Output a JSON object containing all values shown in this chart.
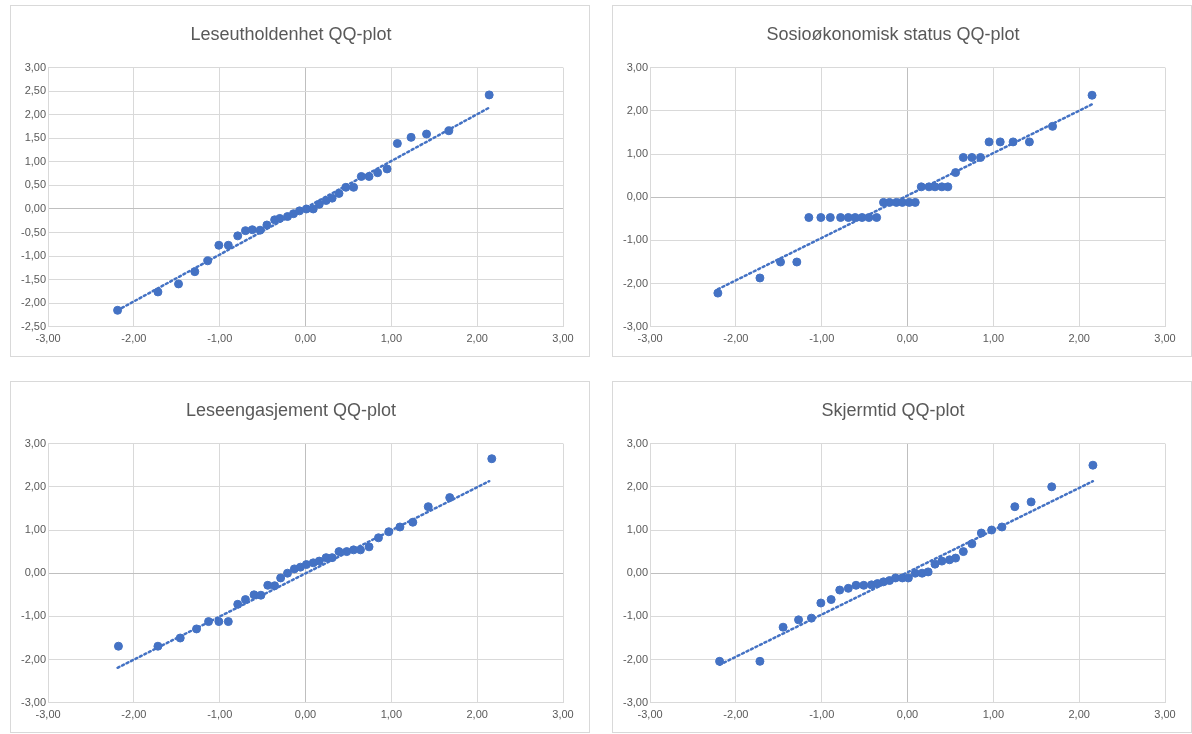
{
  "chart_data": [
    {
      "type": "scatter",
      "title": "Leseutholdenhet QQ-plot",
      "marker": "circle",
      "grid": true,
      "xlim": [
        -3,
        3
      ],
      "xticks": [
        {
          "value": -3,
          "label": "-3,00"
        },
        {
          "value": -2,
          "label": "-2,00"
        },
        {
          "value": -1,
          "label": "-1,00"
        },
        {
          "value": 0,
          "label": "0,00"
        },
        {
          "value": 1,
          "label": "1,00"
        },
        {
          "value": 2,
          "label": "2,00"
        },
        {
          "value": 3,
          "label": "3,00"
        }
      ],
      "ylim": [
        -2.5,
        3
      ],
      "yticks": [
        {
          "value": -2.5,
          "label": "-2,50"
        },
        {
          "value": -2,
          "label": "-2,00"
        },
        {
          "value": -1.5,
          "label": "-1,50"
        },
        {
          "value": -1,
          "label": "-1,00"
        },
        {
          "value": -0.5,
          "label": "-0,50"
        },
        {
          "value": 0,
          "label": "0,00"
        },
        {
          "value": 0.5,
          "label": "0,50"
        },
        {
          "value": 1,
          "label": "1,00"
        },
        {
          "value": 1.5,
          "label": "1,50"
        },
        {
          "value": 2,
          "label": "2,00"
        },
        {
          "value": 2.5,
          "label": "2,50"
        },
        {
          "value": 3,
          "label": "3,00"
        }
      ],
      "series": [
        {
          "type": "scatter",
          "color": "#4472c4",
          "x": [
            -2.19,
            -1.72,
            -1.48,
            -1.29,
            -1.14,
            -1.01,
            -0.9,
            -0.79,
            -0.7,
            -0.62,
            -0.53,
            -0.45,
            -0.36,
            -0.3,
            -0.21,
            -0.14,
            -0.07,
            0.01,
            0.09,
            0.16,
            0.24,
            0.31,
            0.39,
            0.47,
            0.56,
            0.65,
            0.74,
            0.84,
            0.95,
            1.07,
            1.23,
            1.41,
            1.67,
            2.14
          ],
          "values": [
            -2.15,
            -1.76,
            -1.59,
            -1.33,
            -1.1,
            -0.77,
            -0.77,
            -0.57,
            -0.46,
            -0.44,
            -0.45,
            -0.34,
            -0.23,
            -0.2,
            -0.16,
            -0.1,
            -0.04,
            0,
            0,
            0.1,
            0.18,
            0.23,
            0.33,
            0.46,
            0.46,
            0.69,
            0.69,
            0.77,
            0.85,
            1.39,
            1.52,
            1.59,
            1.66,
            2.42
          ]
        },
        {
          "type": "line",
          "color": "#4472c4",
          "line_style": "dotted",
          "marker": "none",
          "x": [
            -2.19,
            2.14
          ],
          "values": [
            -2.15,
            2.15
          ]
        }
      ]
    },
    {
      "type": "scatter",
      "title": "Sosioøkonomisk status QQ-plot",
      "marker": "circle",
      "grid": true,
      "xlim": [
        -3,
        3
      ],
      "xticks": [
        {
          "value": -3,
          "label": "-3,00"
        },
        {
          "value": -2,
          "label": "-2,00"
        },
        {
          "value": -1,
          "label": "-1,00"
        },
        {
          "value": 0,
          "label": "0,00"
        },
        {
          "value": 1,
          "label": "1,00"
        },
        {
          "value": 2,
          "label": "2,00"
        },
        {
          "value": 3,
          "label": "3,00"
        }
      ],
      "ylim": [
        -3,
        3
      ],
      "yticks": [
        {
          "value": -3,
          "label": "-3,00"
        },
        {
          "value": -2,
          "label": "-2,00"
        },
        {
          "value": -1,
          "label": "-1,00"
        },
        {
          "value": 0,
          "label": "0,00"
        },
        {
          "value": 1,
          "label": "1,00"
        },
        {
          "value": 2,
          "label": "2,00"
        },
        {
          "value": 3,
          "label": "3,00"
        }
      ],
      "series": [
        {
          "type": "scatter",
          "color": "#4472c4",
          "x": [
            -2.21,
            -1.72,
            -1.48,
            -1.29,
            -1.15,
            -1.01,
            -0.9,
            -0.78,
            -0.69,
            -0.61,
            -0.53,
            -0.45,
            -0.36,
            -0.28,
            -0.21,
            -0.13,
            -0.06,
            0.02,
            0.09,
            0.16,
            0.25,
            0.32,
            0.4,
            0.47,
            0.56,
            0.65,
            0.75,
            0.85,
            0.95,
            1.08,
            1.23,
            1.42,
            1.69,
            2.15
          ],
          "values": [
            -2.22,
            -1.87,
            -1.5,
            -1.5,
            -0.47,
            -0.47,
            -0.47,
            -0.47,
            -0.47,
            -0.47,
            -0.47,
            -0.47,
            -0.47,
            -0.12,
            -0.12,
            -0.12,
            -0.12,
            -0.12,
            -0.12,
            0.24,
            0.24,
            0.24,
            0.24,
            0.24,
            0.57,
            0.92,
            0.92,
            0.92,
            1.28,
            1.28,
            1.28,
            1.28,
            1.64,
            2.36
          ]
        },
        {
          "type": "line",
          "color": "#4472c4",
          "line_style": "dotted",
          "marker": "none",
          "x": [
            -2.21,
            2.15
          ],
          "values": [
            -2.13,
            2.15
          ]
        }
      ]
    },
    {
      "type": "scatter",
      "title": "Leseengasjement QQ-plot",
      "marker": "circle",
      "grid": true,
      "xlim": [
        -3,
        3
      ],
      "xticks": [
        {
          "value": -3,
          "label": "-3,00"
        },
        {
          "value": -2,
          "label": "-2,00"
        },
        {
          "value": -1,
          "label": "-1,00"
        },
        {
          "value": 0,
          "label": "0,00"
        },
        {
          "value": 1,
          "label": "1,00"
        },
        {
          "value": 2,
          "label": "2,00"
        },
        {
          "value": 3,
          "label": "3,00"
        }
      ],
      "ylim": [
        -3,
        3
      ],
      "yticks": [
        {
          "value": -3,
          "label": "-3,00"
        },
        {
          "value": -2,
          "label": "-2,00"
        },
        {
          "value": -1,
          "label": "-1,00"
        },
        {
          "value": 0,
          "label": "0,00"
        },
        {
          "value": 1,
          "label": "1,00"
        },
        {
          "value": 2,
          "label": "2,00"
        },
        {
          "value": 3,
          "label": "3,00"
        }
      ],
      "series": [
        {
          "type": "scatter",
          "color": "#4472c4",
          "x": [
            -2.18,
            -1.72,
            -1.46,
            -1.27,
            -1.13,
            -1.01,
            -0.9,
            -0.79,
            -0.7,
            -0.6,
            -0.52,
            -0.44,
            -0.36,
            -0.29,
            -0.21,
            -0.13,
            -0.06,
            0.01,
            0.09,
            0.16,
            0.24,
            0.31,
            0.39,
            0.48,
            0.56,
            0.64,
            0.74,
            0.85,
            0.97,
            1.1,
            1.25,
            1.43,
            1.68,
            2.17
          ],
          "values": [
            -1.69,
            -1.69,
            -1.5,
            -1.29,
            -1.12,
            -1.12,
            -1.12,
            -0.72,
            -0.61,
            -0.5,
            -0.51,
            -0.28,
            -0.29,
            -0.11,
            0,
            0.1,
            0.14,
            0.2,
            0.24,
            0.28,
            0.36,
            0.36,
            0.5,
            0.5,
            0.54,
            0.54,
            0.61,
            0.82,
            0.96,
            1.07,
            1.18,
            1.54,
            1.75,
            2.65
          ]
        },
        {
          "type": "line",
          "color": "#4472c4",
          "line_style": "dotted",
          "marker": "none",
          "x": [
            -2.19,
            2.14
          ],
          "values": [
            -2.19,
            2.13
          ]
        }
      ]
    },
    {
      "type": "scatter",
      "title": "Skjermtid QQ-plot",
      "marker": "circle",
      "grid": true,
      "xlim": [
        -3,
        3
      ],
      "xticks": [
        {
          "value": -3,
          "label": "-3,00"
        },
        {
          "value": -2,
          "label": "-2,00"
        },
        {
          "value": -1,
          "label": "-1,00"
        },
        {
          "value": 0,
          "label": "0,00"
        },
        {
          "value": 1,
          "label": "1,00"
        },
        {
          "value": 2,
          "label": "2,00"
        },
        {
          "value": 3,
          "label": "3,00"
        }
      ],
      "ylim": [
        -3,
        3
      ],
      "yticks": [
        {
          "value": -3,
          "label": "-3,00"
        },
        {
          "value": -2,
          "label": "-2,00"
        },
        {
          "value": -1,
          "label": "-1,00"
        },
        {
          "value": 0,
          "label": "0,00"
        },
        {
          "value": 1,
          "label": "1,00"
        },
        {
          "value": 2,
          "label": "2,00"
        },
        {
          "value": 3,
          "label": "3,00"
        }
      ],
      "series": [
        {
          "type": "scatter",
          "color": "#4472c4",
          "x": [
            -2.19,
            -1.72,
            -1.45,
            -1.27,
            -1.12,
            -1.01,
            -0.89,
            -0.79,
            -0.69,
            -0.6,
            -0.51,
            -0.42,
            -0.35,
            -0.28,
            -0.21,
            -0.14,
            -0.06,
            0.01,
            0.09,
            0.17,
            0.24,
            0.32,
            0.4,
            0.49,
            0.56,
            0.65,
            0.75,
            0.86,
            0.98,
            1.1,
            1.25,
            1.44,
            1.68,
            2.16
          ],
          "values": [
            -2.04,
            -2.04,
            -1.25,
            -1.08,
            -1.04,
            -0.69,
            -0.61,
            -0.39,
            -0.35,
            -0.28,
            -0.28,
            -0.27,
            -0.24,
            -0.2,
            -0.17,
            -0.11,
            -0.11,
            -0.11,
            0,
            0,
            0.03,
            0.21,
            0.28,
            0.31,
            0.35,
            0.5,
            0.68,
            0.93,
            1,
            1.07,
            1.54,
            1.65,
            2,
            2.5
          ]
        },
        {
          "type": "line",
          "color": "#4472c4",
          "line_style": "dotted",
          "marker": "none",
          "x": [
            -2.19,
            2.16
          ],
          "values": [
            -2.12,
            2.13
          ]
        }
      ]
    }
  ]
}
